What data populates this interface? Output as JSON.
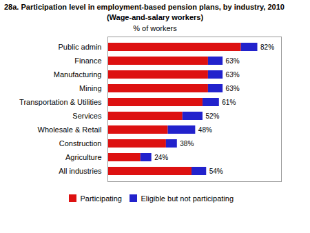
{
  "chart_data": {
    "type": "bar",
    "orientation": "horizontal",
    "stacked": true,
    "title": "28a. Participation level in employment-based pension plans, by industry, 2010",
    "subtitle": "(Wage-and-salary workers)",
    "xlabel": "% of workers",
    "categories": [
      "All industries",
      "Agriculture",
      "Construction",
      "Wholesale & Retail",
      "Services",
      "Transportation & Utilities",
      "Mining",
      "Manufacturing",
      "Finance",
      "Public admin"
    ],
    "series": [
      {
        "name": "Participating",
        "color": "#dd1111",
        "values": [
          46,
          18,
          32,
          33,
          41,
          52,
          55,
          55,
          55,
          73
        ]
      },
      {
        "name": "Eligible but not participating",
        "color": "#2222cc",
        "values": [
          8,
          6,
          6,
          15,
          11,
          9,
          8,
          8,
          8,
          9
        ]
      }
    ],
    "totals": [
      54,
      24,
      38,
      48,
      52,
      61,
      63,
      63,
      63,
      82
    ],
    "total_labels": [
      "54%",
      "24%",
      "38%",
      "48%",
      "52%",
      "61%",
      "63%",
      "63%",
      "63%",
      "82%"
    ],
    "xlim": [
      0,
      95
    ],
    "xticks": [],
    "tick_labels": "y",
    "grid": false,
    "legend": "bottom"
  }
}
